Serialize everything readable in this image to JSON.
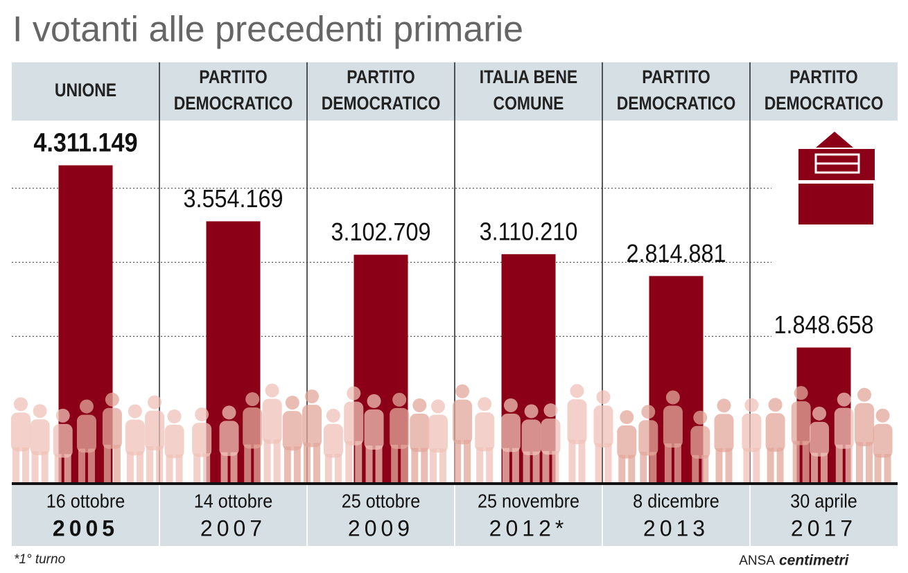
{
  "chart_data": {
    "type": "bar",
    "title": "I votanti alle precedenti primarie",
    "categories": [
      [
        "UNIONE"
      ],
      [
        "PARTITO",
        "DEMOCRATICO"
      ],
      [
        "PARTITO",
        "DEMOCRATICO"
      ],
      [
        "ITALIA BENE",
        "COMUNE"
      ],
      [
        "PARTITO",
        "DEMOCRATICO"
      ],
      [
        "PARTITO",
        "DEMOCRATICO"
      ]
    ],
    "dates": [
      "16 ottobre",
      "14 ottobre",
      "25 ottobre",
      "25 novembre",
      "8 dicembre",
      "30 aprile"
    ],
    "years": [
      "2005",
      "2007",
      "2009",
      "2012*",
      "2013",
      "2017"
    ],
    "values": [
      4311149,
      3554169,
      3102709,
      3110210,
      2814881,
      1848658
    ],
    "value_labels": [
      "4.311.149",
      "3.554.169",
      "3.102.709",
      "3.110.210",
      "2.814.881",
      "1.848.658"
    ],
    "color": "#8b0016",
    "ylim": [
      0,
      5000000
    ],
    "yticks": [
      2000000,
      3000000,
      4000000
    ],
    "grid": true,
    "note": "*1° turno",
    "source": "ANSA",
    "credit": "centimetri"
  }
}
